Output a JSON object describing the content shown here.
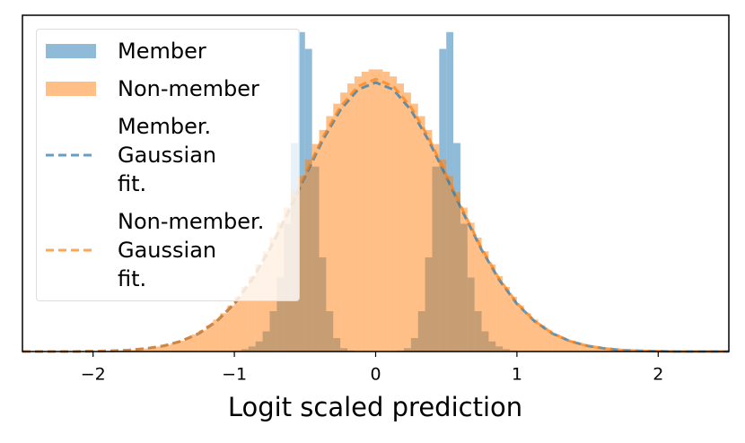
{
  "chart_data": {
    "type": "histogram",
    "xlabel": "Logit scaled prediction",
    "xlim": [
      -2.5,
      2.5
    ],
    "xticks": [
      {
        "value": -2,
        "label": "−2"
      },
      {
        "value": -1,
        "label": "−1"
      },
      0,
      1,
      2
    ],
    "ylim": [
      0,
      100
    ],
    "bins": [
      -2.5,
      -2.45,
      -2.4,
      -2.35,
      -2.3,
      -2.25,
      -2.2,
      -2.15,
      -2.1,
      -2.05,
      -2,
      -1.95,
      -1.9,
      -1.85,
      -1.8,
      -1.75,
      -1.7,
      -1.65,
      -1.6,
      -1.55,
      -1.5,
      -1.45,
      -1.4,
      -1.35,
      -1.3,
      -1.25,
      -1.2,
      -1.15,
      -1.1,
      -1.05,
      -1,
      -0.95,
      -0.9,
      -0.85,
      -0.8,
      -0.75,
      -0.7,
      -0.65,
      -0.6,
      -0.55,
      -0.5,
      -0.45,
      -0.4,
      -0.35,
      -0.3,
      -0.25,
      -0.2,
      -0.15,
      -0.1,
      -0.05,
      0,
      0.05,
      0.1,
      0.15,
      0.2,
      0.25,
      0.3,
      0.35,
      0.4,
      0.45,
      0.5,
      0.55,
      0.6,
      0.65,
      0.7,
      0.75,
      0.8,
      0.85,
      0.9,
      0.95,
      1,
      1.05,
      1.1,
      1.15,
      1.2,
      1.25,
      1.3,
      1.35,
      1.4,
      1.45,
      1.5,
      1.55,
      1.6,
      1.65,
      1.7,
      1.75,
      1.8,
      1.85,
      1.9,
      1.95,
      2,
      2.05,
      2.1,
      2.15,
      2.2,
      2.25,
      2.3,
      2.35,
      2.4,
      2.45,
      2.5
    ],
    "series": [
      {
        "name": "Member",
        "type": "histogram",
        "color": "#1f77b4",
        "alpha": 0.5,
        "values": [
          0,
          0,
          0,
          0,
          0,
          0,
          0,
          0,
          0,
          0,
          0,
          0,
          0,
          0,
          0,
          0,
          0,
          0,
          0,
          0,
          0,
          0,
          0,
          0,
          0,
          0,
          0,
          0,
          0,
          0.1,
          0.3,
          0.7,
          1.5,
          3,
          6,
          12,
          22,
          38,
          62,
          95,
          90,
          55,
          28,
          12,
          4,
          1,
          0.3,
          0.1,
          0,
          0,
          0,
          0,
          0.1,
          0.3,
          1,
          4,
          12,
          28,
          55,
          90,
          95,
          62,
          38,
          22,
          12,
          6,
          3,
          1.5,
          0.7,
          0.3,
          0.1,
          0,
          0,
          0,
          0,
          0,
          0,
          0,
          0,
          0,
          0,
          0,
          0,
          0,
          0,
          0,
          0,
          0,
          0,
          0,
          0,
          0,
          0,
          0,
          0,
          0,
          0,
          0,
          0,
          0
        ]
      },
      {
        "name": "Non-member",
        "type": "histogram",
        "color": "#ff7f0e",
        "alpha": 0.5,
        "values": [
          0,
          0,
          0,
          0,
          0,
          0,
          0,
          0,
          0,
          0.1,
          0.1,
          0.1,
          0.2,
          0.3,
          0.4,
          0.5,
          0.7,
          0.9,
          1.2,
          1.5,
          2,
          2.5,
          3.2,
          4.1,
          5.1,
          6.3,
          7.8,
          9.5,
          11.4,
          13.7,
          16.3,
          19.2,
          22.4,
          25.9,
          29.8,
          33.9,
          38.3,
          42.8,
          47.5,
          52.2,
          57.1,
          61.7,
          65.9,
          70,
          73.7,
          77,
          79.7,
          81.8,
          83.2,
          83.9,
          83.9,
          83.2,
          81.8,
          79.7,
          77,
          73.7,
          70,
          65.9,
          61.7,
          57.1,
          52.2,
          47.5,
          42.8,
          38.3,
          33.9,
          29.8,
          25.9,
          22.4,
          19.2,
          16.3,
          13.7,
          11.4,
          9.5,
          7.8,
          6.3,
          5.1,
          4.1,
          3.2,
          2.5,
          2,
          1.5,
          1.2,
          0.9,
          0.7,
          0.5,
          0.4,
          0.3,
          0.2,
          0.1,
          0.1,
          0.1,
          0,
          0,
          0,
          0,
          0,
          0,
          0,
          0,
          0
        ]
      },
      {
        "name": "Member.\nGaussian\nfit.",
        "type": "line",
        "color": "#1f77b4",
        "alpha": 0.7,
        "dashed": true,
        "x": [
          -2.5,
          -2.375,
          -2.25,
          -2.125,
          -2,
          -1.875,
          -1.75,
          -1.625,
          -1.5,
          -1.375,
          -1.25,
          -1.125,
          -1,
          -0.875,
          -0.75,
          -0.625,
          -0.5,
          -0.375,
          -0.25,
          -0.125,
          0,
          0.125,
          0.25,
          0.375,
          0.5,
          0.625,
          0.75,
          0.875,
          1,
          1.125,
          1.25,
          1.375,
          1.5,
          1.625,
          1.75,
          1.875,
          2,
          2.125,
          2.25,
          2.375,
          2.5
        ],
        "values": [
          0,
          0,
          0,
          0,
          0.1,
          0.2,
          0.4,
          0.9,
          1.7,
          3.1,
          5.4,
          9,
          14.2,
          21.3,
          30.3,
          40.8,
          52,
          62.8,
          71.8,
          77.9,
          80,
          77.9,
          71.8,
          62.8,
          52,
          40.8,
          30.3,
          21.3,
          14.2,
          9,
          5.4,
          3.1,
          1.7,
          0.9,
          0.4,
          0.2,
          0.1,
          0,
          0,
          0,
          0
        ]
      },
      {
        "name": "Non-member.\nGaussian\nfit.",
        "type": "line",
        "color": "#ff7f0e",
        "alpha": 0.7,
        "dashed": true,
        "x": [
          -2.5,
          -2.375,
          -2.25,
          -2.125,
          -2,
          -1.875,
          -1.75,
          -1.625,
          -1.5,
          -1.375,
          -1.25,
          -1.125,
          -1,
          -0.875,
          -0.75,
          -0.625,
          -0.5,
          -0.375,
          -0.25,
          -0.125,
          0,
          0.125,
          0.25,
          0.375,
          0.5,
          0.625,
          0.75,
          0.875,
          1,
          1.125,
          1.25,
          1.375,
          1.5,
          1.625,
          1.75,
          1.875,
          2,
          2.125,
          2.25,
          2.375,
          2.5
        ],
        "values": [
          0,
          0,
          0,
          0,
          0.1,
          0.2,
          0.4,
          0.9,
          1.7,
          3.1,
          5.5,
          9.1,
          14.4,
          21.6,
          30.7,
          41.3,
          52.6,
          63.6,
          72.7,
          78.9,
          81,
          78.9,
          72.7,
          63.6,
          52.6,
          41.3,
          30.7,
          21.6,
          14.4,
          9.1,
          5.5,
          3.1,
          1.7,
          0.9,
          0.4,
          0.2,
          0.1,
          0,
          0,
          0,
          0
        ]
      }
    ],
    "legend": "upper left"
  }
}
